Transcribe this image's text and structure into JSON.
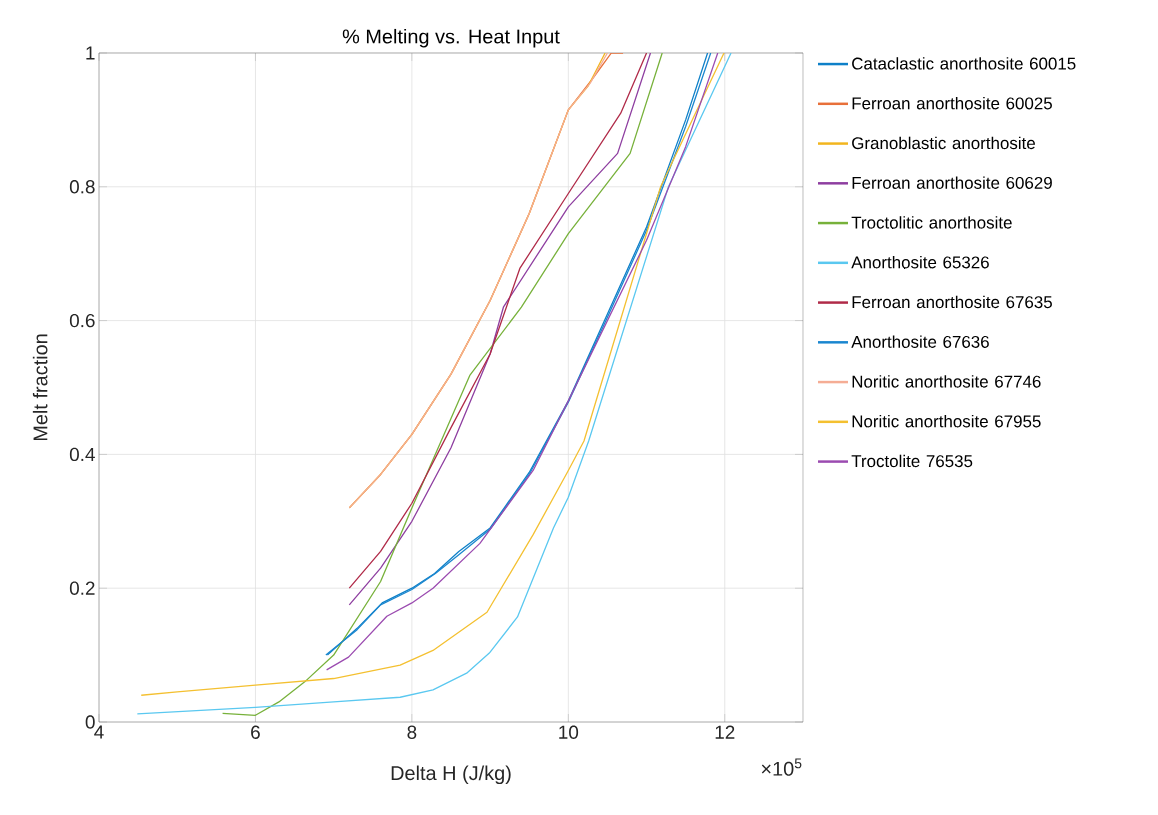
{
  "chart_data": {
    "type": "line",
    "title": "% Melting vs. Heat Input",
    "xlabel": "Delta H (J/kg)",
    "ylabel": "Melt fraction",
    "xlim": [
      4,
      13
    ],
    "xticks": [
      4,
      6,
      8,
      10,
      12
    ],
    "ylim": [
      0,
      1
    ],
    "yticks": [
      0,
      0.2,
      0.4,
      0.6,
      0.8,
      1
    ],
    "grid": true,
    "legend": "right",
    "line_style": "solid",
    "marker": "none",
    "annotations": [
      "×10$^{5}$"
    ],
    "series": [
      {
        "name": "Cataclastic anorthosite 60015",
        "color": "#0e80c8",
        "x": [
          6.92,
          7.3,
          7.62,
          8.0,
          8.29,
          8.6,
          9.0,
          9.5,
          10.0,
          10.5,
          11.0,
          11.5,
          11.78
        ],
        "values": [
          0.1,
          0.14,
          0.178,
          0.2,
          0.222,
          0.255,
          0.29,
          0.373,
          0.48,
          0.61,
          0.74,
          0.9,
          1.0
        ]
      },
      {
        "name": "Ferroan anorthosite 60025",
        "color": "#e8703a",
        "x": [
          7.2,
          7.6,
          8.0,
          8.5,
          9.0,
          9.5,
          10.0,
          10.3,
          10.55,
          10.7
        ],
        "values": [
          0.32,
          0.37,
          0.43,
          0.52,
          0.63,
          0.76,
          0.915,
          0.96,
          1.0,
          1.0
        ]
      },
      {
        "name": "Granoblastic anorthosite",
        "color": "#f2b51e",
        "x": [
          7.2,
          7.6,
          8.0,
          8.5,
          9.0,
          9.5,
          10.0,
          10.25,
          10.47
        ],
        "values": [
          0.32,
          0.37,
          0.43,
          0.52,
          0.63,
          0.76,
          0.915,
          0.95,
          1.0
        ]
      },
      {
        "name": "Ferroan anorthosite 60629",
        "color": "#8e3ea0",
        "x": [
          7.2,
          7.6,
          8.0,
          8.5,
          9.0,
          9.17,
          10.0,
          10.63,
          11.05
        ],
        "values": [
          0.175,
          0.23,
          0.3,
          0.41,
          0.55,
          0.62,
          0.77,
          0.85,
          1.0
        ]
      },
      {
        "name": "Troctolitic anorthosite",
        "color": "#77b13a",
        "x": [
          5.58,
          6.0,
          6.3,
          6.63,
          7.0,
          7.6,
          8.0,
          8.74,
          9.4,
          10.0,
          10.79,
          11.2
        ],
        "values": [
          0.013,
          0.01,
          0.03,
          0.06,
          0.1,
          0.21,
          0.32,
          0.518,
          0.62,
          0.73,
          0.85,
          1.0
        ]
      },
      {
        "name": "Anorthosite 65326",
        "color": "#5ac8f0",
        "x": [
          4.49,
          6.0,
          7.0,
          7.85,
          8.27,
          8.7,
          8.99,
          9.35,
          9.81,
          10.0,
          10.26,
          11.28,
          12.08
        ],
        "values": [
          0.012,
          0.022,
          0.03,
          0.037,
          0.048,
          0.073,
          0.103,
          0.157,
          0.29,
          0.336,
          0.42,
          0.8,
          1.0
        ]
      },
      {
        "name": "Ferroan anorthosite 67635",
        "color": "#b02a48",
        "x": [
          7.2,
          7.6,
          8.0,
          8.5,
          9.0,
          9.38,
          10.0,
          10.67,
          11.0
        ],
        "values": [
          0.2,
          0.255,
          0.327,
          0.44,
          0.55,
          0.678,
          0.79,
          0.91,
          1.0
        ]
      },
      {
        "name": "Anorthosite 67636",
        "color": "#1a86cf",
        "x": [
          6.9,
          7.3,
          7.6,
          8.0,
          8.3,
          8.6,
          9.0,
          9.5,
          10.0,
          10.5,
          11.0,
          11.5,
          11.82
        ],
        "values": [
          0.1,
          0.138,
          0.175,
          0.198,
          0.222,
          0.25,
          0.288,
          0.37,
          0.478,
          0.605,
          0.735,
          0.89,
          1.0
        ]
      },
      {
        "name": "Noritic anorthosite 67746",
        "color": "#f5ad95",
        "x": [
          7.2,
          7.6,
          8.0,
          8.5,
          9.0,
          9.5,
          10.0,
          10.28,
          10.5
        ],
        "values": [
          0.32,
          0.37,
          0.43,
          0.52,
          0.63,
          0.76,
          0.915,
          0.955,
          1.0
        ]
      },
      {
        "name": "Noritic anorthosite 67955",
        "color": "#f4c030",
        "x": [
          4.54,
          5.0,
          6.0,
          7.0,
          7.85,
          8.27,
          8.96,
          9.55,
          10.0,
          10.2,
          11.18,
          11.99
        ],
        "values": [
          0.04,
          0.045,
          0.055,
          0.065,
          0.085,
          0.107,
          0.164,
          0.28,
          0.376,
          0.42,
          0.8,
          1.0
        ]
      },
      {
        "name": "Troctolite 76535",
        "color": "#9b4bb0",
        "x": [
          6.91,
          7.19,
          7.68,
          8.0,
          8.27,
          8.87,
          9.55,
          10.0,
          10.5,
          11.0,
          11.5,
          11.91
        ],
        "values": [
          0.078,
          0.097,
          0.158,
          0.178,
          0.2,
          0.267,
          0.376,
          0.48,
          0.6,
          0.72,
          0.86,
          1.0
        ]
      }
    ]
  }
}
